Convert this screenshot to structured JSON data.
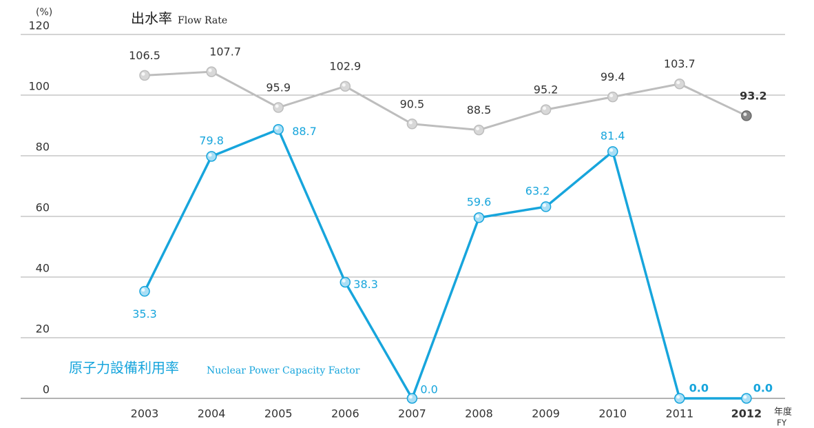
{
  "chart_data": {
    "type": "line",
    "unit_label": "(%)",
    "x_label": "年度",
    "x_label_en": "FY",
    "categories": [
      "2003",
      "2004",
      "2005",
      "2006",
      "2007",
      "2008",
      "2009",
      "2010",
      "2011",
      "2012"
    ],
    "series": [
      {
        "name": "出水率",
        "name_en": "Flow Rate",
        "color": "#bdbdbd",
        "values": [
          106.5,
          107.7,
          95.9,
          102.9,
          90.5,
          88.5,
          95.2,
          99.4,
          103.7,
          93.2
        ],
        "value_labels": [
          "106.5",
          "107.7",
          "95.9",
          "102.9",
          "90.5",
          "88.5",
          "95.2",
          "99.4",
          "103.7",
          "93.2"
        ]
      },
      {
        "name": "原子力設備利用率",
        "name_en": "Nuclear Power Capacity Factor",
        "color": "#17a5dc",
        "values": [
          35.3,
          79.8,
          88.7,
          38.3,
          0.0,
          59.6,
          63.2,
          81.4,
          0.0,
          0.0
        ],
        "value_labels": [
          "35.3",
          "79.8",
          "88.7",
          "38.3",
          "0.0",
          "59.6",
          "63.2",
          "81.4",
          "0.0",
          "0.0"
        ]
      }
    ],
    "ylim": [
      0,
      120
    ],
    "yticks": [
      0,
      20,
      40,
      60,
      80,
      100,
      120
    ],
    "grid": true
  }
}
